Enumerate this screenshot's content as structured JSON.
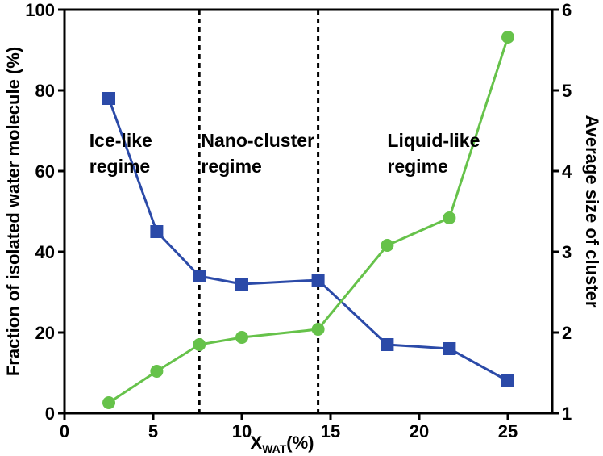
{
  "chart_data": {
    "type": "line",
    "xlabel": "X",
    "xlabel_sub": "WAT",
    "xlabel_suffix": "(%)",
    "ylabel_left": "Fraction of isolated water molecule (%)",
    "ylabel_right": "Average size of cluster",
    "xlim": [
      0,
      27.5
    ],
    "xticks": [
      0,
      5,
      10,
      15,
      20,
      25
    ],
    "ylim_left": [
      0,
      100
    ],
    "yticks_left": [
      0,
      20,
      40,
      60,
      80,
      100
    ],
    "ylim_right": [
      1,
      6
    ],
    "yticks_right": [
      1,
      2,
      3,
      4,
      5,
      6
    ],
    "grid": false,
    "series": [
      {
        "axis": "left",
        "marker": "square",
        "color": "#2b4aa8",
        "x": [
          2.5,
          5.2,
          7.6,
          10.0,
          14.3,
          18.2,
          21.7,
          25.0
        ],
        "values": [
          78,
          45,
          34,
          32,
          33,
          17,
          16,
          8
        ]
      },
      {
        "axis": "right",
        "marker": "circle",
        "color": "#66c24a",
        "x": [
          2.5,
          5.2,
          7.6,
          10.0,
          14.3,
          18.2,
          21.7,
          25.0
        ],
        "values": [
          1.13,
          1.52,
          1.85,
          1.94,
          2.04,
          3.08,
          3.42,
          5.66
        ]
      }
    ],
    "vlines": [
      7.6,
      14.3
    ],
    "annotations": [
      {
        "lines": [
          "Ice-like",
          "regime"
        ],
        "x": 1.4,
        "y": 66
      },
      {
        "lines": [
          "Nano-cluster",
          "regime"
        ],
        "x": 7.7,
        "y": 66
      },
      {
        "lines": [
          "Liquid-like",
          "regime"
        ],
        "x": 18.2,
        "y": 66
      }
    ]
  }
}
